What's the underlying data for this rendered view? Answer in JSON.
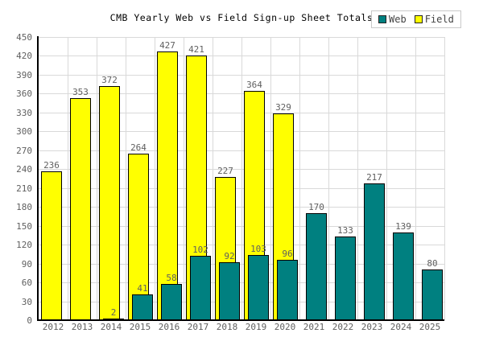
{
  "chart_data": {
    "type": "bar",
    "title": "CMB Yearly Web vs Field Sign-up Sheet Totals",
    "categories": [
      "2012",
      "2013",
      "2014",
      "2015",
      "2016",
      "2017",
      "2018",
      "2019",
      "2020",
      "2021",
      "2022",
      "2023",
      "2024",
      "2025"
    ],
    "series": [
      {
        "name": "Web",
        "color": "#008080",
        "values": [
          null,
          null,
          2,
          41,
          58,
          102,
          92,
          103,
          96,
          170,
          133,
          217,
          139,
          80
        ]
      },
      {
        "name": "Field",
        "color": "#ffff00",
        "values": [
          236,
          353,
          372,
          264,
          427,
          421,
          227,
          364,
          329,
          null,
          null,
          null,
          null,
          null
        ]
      }
    ],
    "ylim": [
      0,
      450
    ],
    "ytick_step": 30,
    "grid": true,
    "legend_position": "top-right",
    "bar_value_labels": true,
    "colors": {
      "background": "#ffffff",
      "grid": "#d9d9d9",
      "axis": "#000000",
      "tick_label": "#606060",
      "bar_label": "#606060",
      "title": "#000000",
      "bar_border": "#000000",
      "legend_border": "#c9c9c9",
      "legend_text": "#444444",
      "swatch_border": "#222222"
    }
  }
}
